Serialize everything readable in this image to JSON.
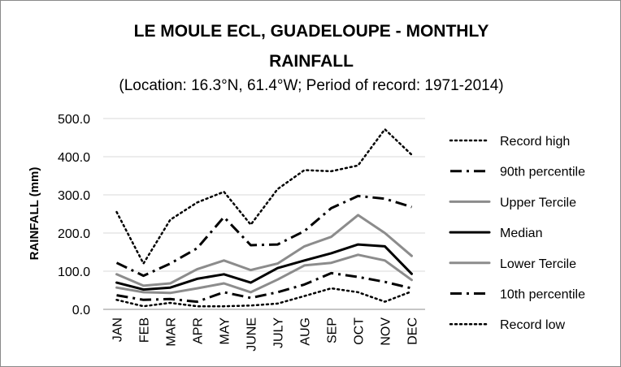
{
  "chart_data": {
    "type": "line",
    "title_line1": "LE MOULE ECL, GUADELOUPE - MONTHLY",
    "title_line2": "RAINFALL",
    "subtitle": "(Location: 16.3°N, 61.4°W; Period of record: 1971-2014)",
    "xlabel": "",
    "ylabel": "RAINFALL (mm)",
    "ylim": [
      0,
      500
    ],
    "yticks": [
      "0.0",
      "100.0",
      "200.0",
      "300.0",
      "400.0",
      "500.0"
    ],
    "grid": "horizontal",
    "legend_position": "right",
    "categories": [
      "JAN",
      "FEB",
      "MAR",
      "APR",
      "MAY",
      "JUNE",
      "JULY",
      "AUG",
      "SEP",
      "OCT",
      "NOV",
      "DEC"
    ],
    "series": [
      {
        "name": "Record high",
        "style": "dotted",
        "color": "#000000",
        "values": [
          255,
          120,
          235,
          280,
          308,
          222,
          315,
          365,
          362,
          377,
          472,
          405
        ]
      },
      {
        "name": "90th percentile",
        "style": "dashdot",
        "color": "#000000",
        "values": [
          122,
          88,
          120,
          160,
          242,
          168,
          170,
          205,
          265,
          297,
          290,
          268
        ]
      },
      {
        "name": "Upper Tercile",
        "style": "solid",
        "color": "#8c8c8c",
        "values": [
          92,
          62,
          68,
          105,
          128,
          103,
          120,
          165,
          190,
          247,
          200,
          140
        ]
      },
      {
        "name": "Median",
        "style": "solid",
        "color": "#000000",
        "values": [
          70,
          52,
          57,
          80,
          92,
          70,
          108,
          128,
          147,
          170,
          165,
          93
        ]
      },
      {
        "name": "Lower Tercile",
        "style": "solid",
        "color": "#8c8c8c",
        "values": [
          57,
          45,
          43,
          55,
          68,
          45,
          78,
          115,
          122,
          143,
          128,
          77
        ]
      },
      {
        "name": "10th percentile",
        "style": "dashdot",
        "color": "#000000",
        "values": [
          37,
          25,
          27,
          20,
          45,
          30,
          45,
          65,
          95,
          85,
          72,
          55
        ]
      },
      {
        "name": "Record low",
        "style": "dotted",
        "color": "#000000",
        "values": [
          25,
          8,
          17,
          8,
          8,
          10,
          15,
          35,
          55,
          45,
          20,
          47
        ]
      }
    ]
  }
}
